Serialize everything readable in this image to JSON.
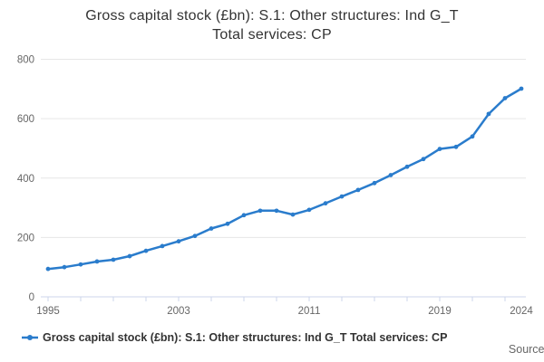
{
  "header": {
    "title_line1": "Gross capital stock (£bn): S.1: Other structures: Ind G_T",
    "title_line2": "Total services: CP"
  },
  "legend": {
    "label": "Gross capital stock (£bn): S.1: Other structures: Ind G_T Total services: CP"
  },
  "footer": {
    "source_label": "Source:"
  },
  "colors": {
    "series": "#2a7ccc",
    "grid": "#e6e6e6",
    "axis": "#ccd6eb",
    "tick_label": "#666666",
    "title_text": "#333333"
  },
  "chart_data": {
    "type": "line",
    "title": "Gross capital stock (£bn): S.1: Other structures: Ind G_T Total services: CP",
    "xlabel": "",
    "ylabel": "",
    "xlim": [
      1995,
      2024
    ],
    "ylim": [
      0,
      800
    ],
    "y_ticks": [
      0,
      200,
      400,
      600,
      800
    ],
    "x_labeled_ticks": [
      1995,
      2003,
      2011,
      2019,
      2024
    ],
    "x_minor_tick_step": 2,
    "grid": "horizontal",
    "legend_position": "bottom-left",
    "x": [
      1995,
      1996,
      1997,
      1998,
      1999,
      2000,
      2001,
      2002,
      2003,
      2004,
      2005,
      2006,
      2007,
      2008,
      2009,
      2010,
      2011,
      2012,
      2013,
      2014,
      2015,
      2016,
      2017,
      2018,
      2019,
      2020,
      2021,
      2022,
      2023,
      2024
    ],
    "series": [
      {
        "name": "Gross capital stock (£bn): S.1: Other structures: Ind G_T Total services: CP",
        "values": [
          94,
          100,
          109,
          119,
          125,
          137,
          155,
          171,
          187,
          205,
          230,
          246,
          275,
          290,
          290,
          277,
          293,
          315,
          338,
          360,
          383,
          410,
          438,
          464,
          498,
          505,
          540,
          616,
          669,
          701
        ]
      }
    ]
  }
}
